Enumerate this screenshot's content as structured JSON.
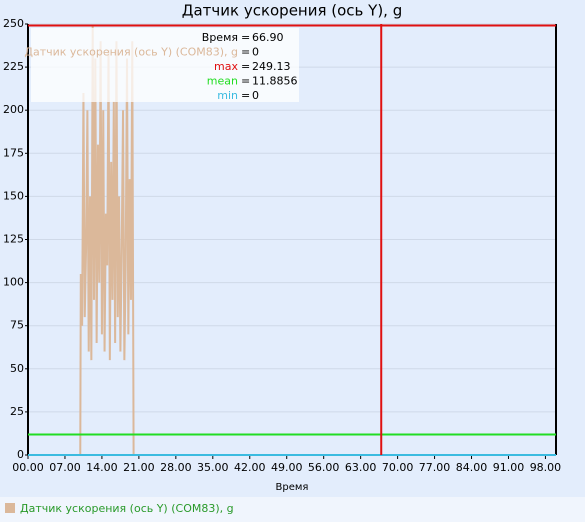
{
  "chart_data": {
    "type": "line",
    "title": "Датчик ускорения (ось Y), g",
    "x_label": "Время",
    "xlim": [
      0,
      100
    ],
    "xticks": [
      {
        "value": 0,
        "label": "00.00"
      },
      {
        "value": 7,
        "label": "07.00"
      },
      {
        "value": 14,
        "label": "14.00"
      },
      {
        "value": 21,
        "label": "21.00"
      },
      {
        "value": 28,
        "label": "28.00"
      },
      {
        "value": 35,
        "label": "35.00"
      },
      {
        "value": 42,
        "label": "42.00"
      },
      {
        "value": 49,
        "label": "49.00"
      },
      {
        "value": 56,
        "label": "56.00"
      },
      {
        "value": 63,
        "label": "63.00"
      },
      {
        "value": 70,
        "label": "70.00"
      },
      {
        "value": 77,
        "label": "77.00"
      },
      {
        "value": 84,
        "label": "84.00"
      },
      {
        "value": 91,
        "label": "91.00"
      },
      {
        "value": 98,
        "label": "98.00"
      }
    ],
    "ylim": [
      0,
      250
    ],
    "yticks": [
      0,
      25,
      50,
      75,
      100,
      125,
      150,
      175,
      200,
      225,
      250
    ],
    "grid": true,
    "legend": "bottom-left",
    "series": [
      {
        "name": "Датчик ускорения (ось Y) (COM83), g",
        "color": "#dbb89a",
        "legend_color": "#2a9a2a",
        "x": [
          0,
          9.9,
          10.0,
          10.25,
          10.5,
          10.75,
          11.0,
          11.25,
          11.5,
          11.75,
          12.0,
          12.25,
          12.5,
          12.75,
          13.0,
          13.25,
          13.5,
          13.75,
          14.0,
          14.25,
          14.5,
          14.75,
          15.0,
          15.25,
          15.5,
          15.75,
          16.0,
          16.25,
          16.5,
          16.75,
          17.0,
          17.25,
          17.5,
          17.75,
          18.0,
          18.25,
          18.5,
          18.75,
          19.0,
          19.25,
          19.5,
          19.75,
          20.0,
          66.9
        ],
        "values": [
          0,
          0,
          105,
          75,
          210,
          80,
          120,
          200,
          60,
          150,
          55,
          249,
          90,
          230,
          65,
          180,
          100,
          240,
          70,
          200,
          60,
          140,
          110,
          235,
          55,
          170,
          90,
          205,
          65,
          240,
          80,
          150,
          60,
          120,
          200,
          55,
          110,
          230,
          70,
          160,
          90,
          240,
          0,
          0
        ]
      }
    ],
    "separator": "=",
    "cursor": {
      "name": "Время",
      "value": 66.9,
      "value_label": "66.90",
      "color": "#e01010"
    },
    "tooltip_value": 0,
    "reference_lines": [
      {
        "name": "max",
        "value": 249.13,
        "color": "#e01010"
      },
      {
        "name": "mean",
        "value": 11.8856,
        "color": "#22dd22"
      },
      {
        "name": "min",
        "value": 0,
        "color": "#3bbbe0"
      }
    ]
  }
}
